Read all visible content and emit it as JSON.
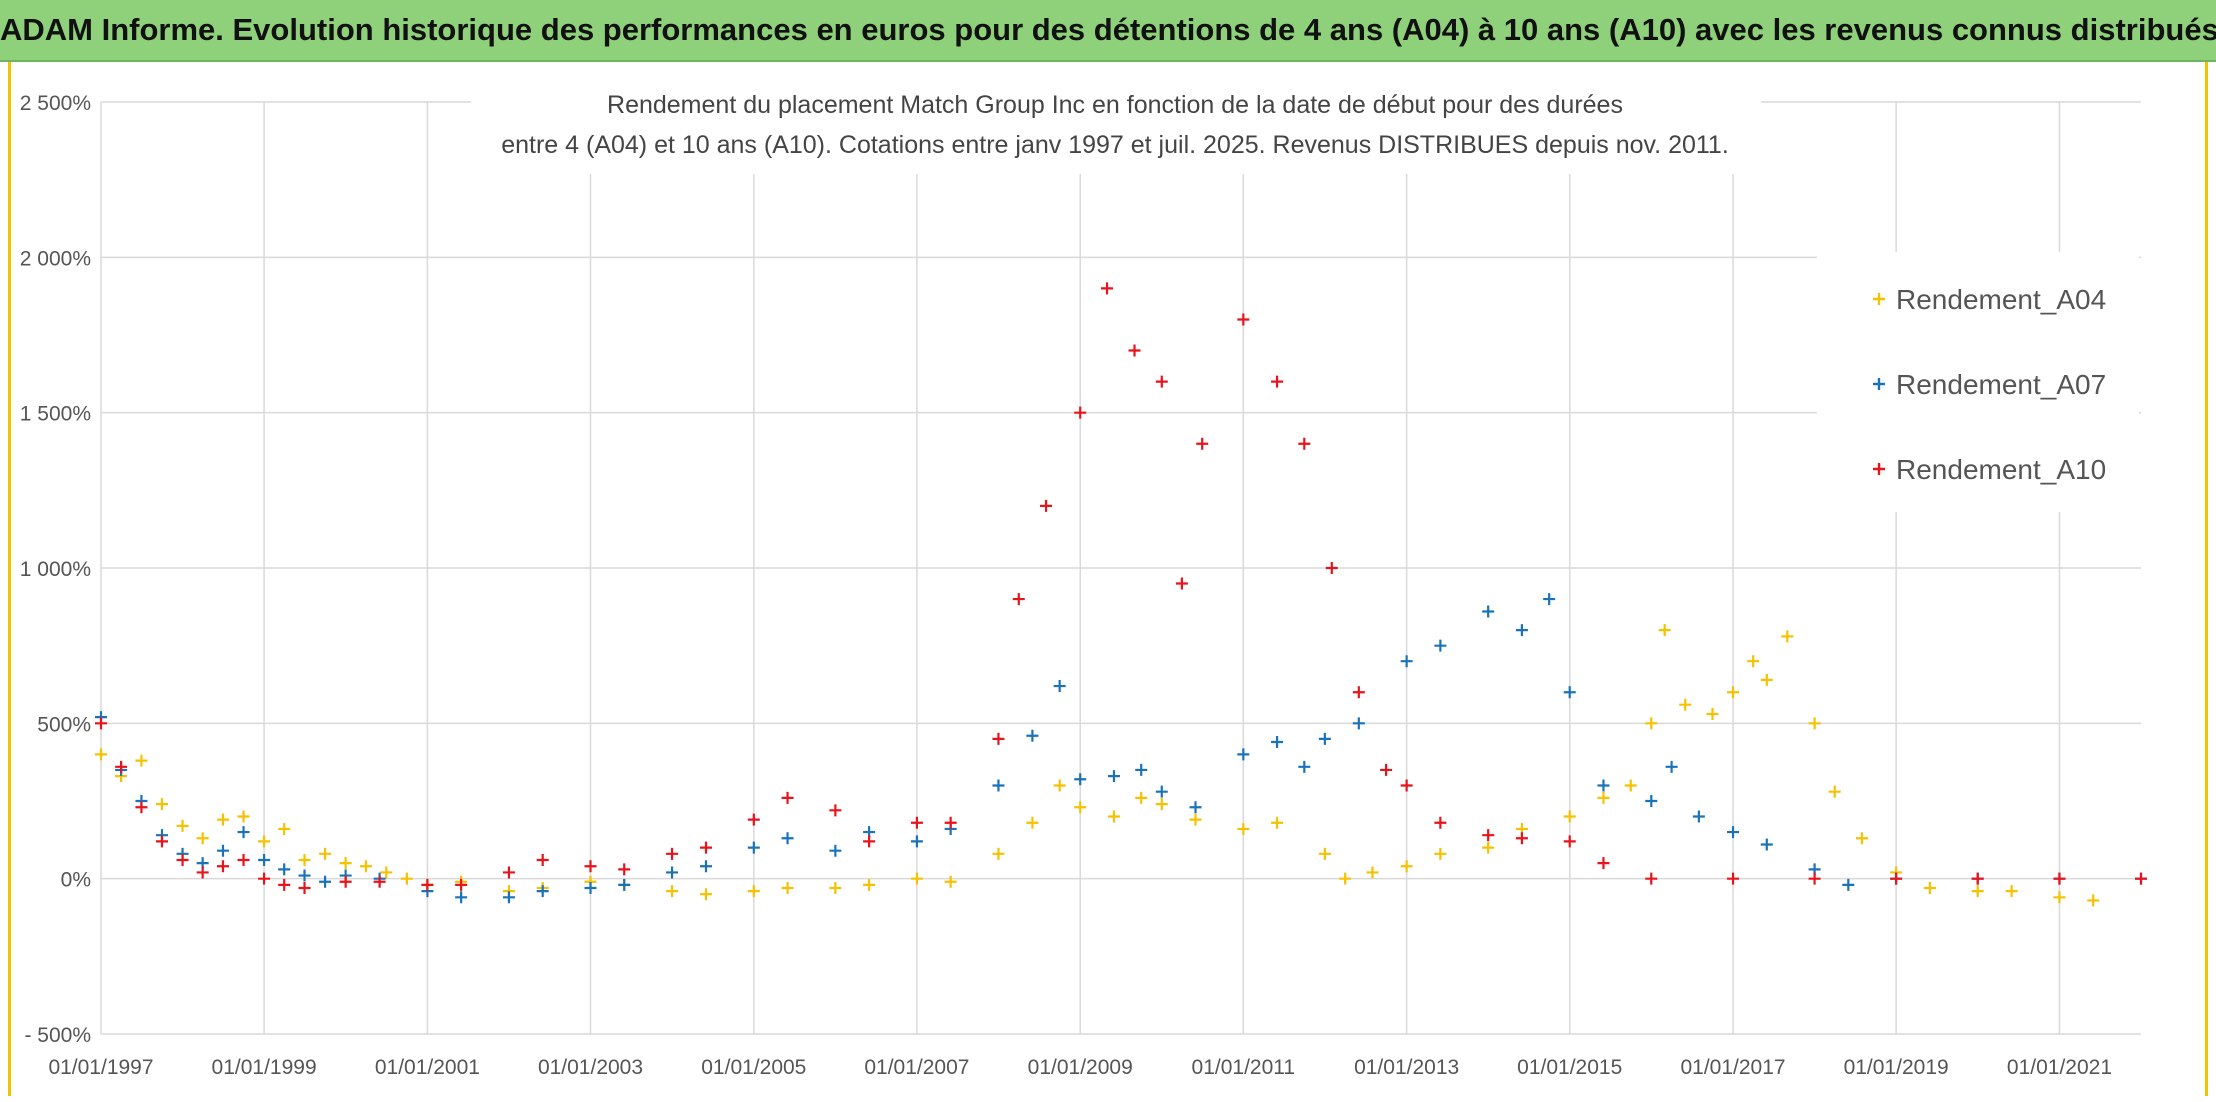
{
  "banner": {
    "title": "ADAM Informe. Evolution historique des performances en euros pour des détentions de 4 ans (A04) à 10 ans (A10) avec les revenus connus distribués"
  },
  "chart_data": {
    "type": "scatter",
    "title_line1": "Rendement du placement Match Group Inc en fonction de la date de début pour des durées",
    "title_line2": "entre 4 (A04) et 10 ans (A10). Cotations entre janv 1997 et juil. 2025. Revenus DISTRIBUES depuis nov. 2011.",
    "xlabel": "",
    "ylabel": "",
    "x_axis": {
      "type": "date",
      "min": "1997-01-01",
      "max": "2022-01-01",
      "ticks": [
        "01/01/1997",
        "01/01/1999",
        "01/01/2001",
        "01/01/2003",
        "01/01/2005",
        "01/01/2007",
        "01/01/2009",
        "01/01/2011",
        "01/01/2013",
        "01/01/2015",
        "01/01/2017",
        "01/01/2019",
        "01/01/2021"
      ]
    },
    "y_axis": {
      "unit": "%",
      "min": -500,
      "max": 2500,
      "step": 500,
      "tick_labels": [
        "- 500%",
        "0%",
        "500%",
        "1 000%",
        "1 500%",
        "2 000%",
        "2 500%"
      ]
    },
    "grid": true,
    "legend_position": "right",
    "marker": "+",
    "series": [
      {
        "name": "Rendement_A04",
        "color": "#f5c100",
        "points": [
          [
            "1997-01-01",
            400
          ],
          [
            "1997-04-01",
            330
          ],
          [
            "1997-07-01",
            380
          ],
          [
            "1997-10-01",
            240
          ],
          [
            "1998-01-01",
            170
          ],
          [
            "1998-04-01",
            130
          ],
          [
            "1998-07-01",
            190
          ],
          [
            "1998-10-01",
            200
          ],
          [
            "1999-01-01",
            120
          ],
          [
            "1999-04-01",
            160
          ],
          [
            "1999-07-01",
            60
          ],
          [
            "1999-10-01",
            80
          ],
          [
            "2000-01-01",
            50
          ],
          [
            "2000-04-01",
            40
          ],
          [
            "2000-07-01",
            20
          ],
          [
            "2000-10-01",
            0
          ],
          [
            "2001-01-01",
            -20
          ],
          [
            "2001-06-01",
            -10
          ],
          [
            "2002-01-01",
            -40
          ],
          [
            "2002-06-01",
            -30
          ],
          [
            "2003-01-01",
            -10
          ],
          [
            "2003-06-01",
            -20
          ],
          [
            "2004-01-01",
            -40
          ],
          [
            "2004-06-01",
            -50
          ],
          [
            "2005-01-01",
            -40
          ],
          [
            "2005-06-01",
            -30
          ],
          [
            "2006-01-01",
            -30
          ],
          [
            "2006-06-01",
            -20
          ],
          [
            "2007-01-01",
            0
          ],
          [
            "2007-06-01",
            -10
          ],
          [
            "2008-01-01",
            80
          ],
          [
            "2008-06-01",
            180
          ],
          [
            "2008-10-01",
            300
          ],
          [
            "2009-01-01",
            230
          ],
          [
            "2009-06-01",
            200
          ],
          [
            "2009-10-01",
            260
          ],
          [
            "2010-01-01",
            240
          ],
          [
            "2010-06-01",
            190
          ],
          [
            "2011-01-01",
            160
          ],
          [
            "2011-06-01",
            180
          ],
          [
            "2012-01-01",
            80
          ],
          [
            "2012-04-01",
            0
          ],
          [
            "2012-08-01",
            20
          ],
          [
            "2013-01-01",
            40
          ],
          [
            "2013-06-01",
            80
          ],
          [
            "2014-01-01",
            100
          ],
          [
            "2014-06-01",
            160
          ],
          [
            "2015-01-01",
            200
          ],
          [
            "2015-06-01",
            260
          ],
          [
            "2015-10-01",
            300
          ],
          [
            "2016-01-01",
            500
          ],
          [
            "2016-03-01",
            800
          ],
          [
            "2016-06-01",
            560
          ],
          [
            "2016-10-01",
            530
          ],
          [
            "2017-01-01",
            600
          ],
          [
            "2017-04-01",
            700
          ],
          [
            "2017-06-01",
            640
          ],
          [
            "2017-09-01",
            780
          ],
          [
            "2018-01-01",
            500
          ],
          [
            "2018-04-01",
            280
          ],
          [
            "2018-08-01",
            130
          ],
          [
            "2019-01-01",
            20
          ],
          [
            "2019-06-01",
            -30
          ],
          [
            "2020-01-01",
            -40
          ],
          [
            "2020-06-01",
            -40
          ],
          [
            "2021-01-01",
            -60
          ],
          [
            "2021-06-01",
            -70
          ]
        ]
      },
      {
        "name": "Rendement_A07",
        "color": "#1a73b8",
        "points": [
          [
            "1997-01-01",
            520
          ],
          [
            "1997-04-01",
            350
          ],
          [
            "1997-07-01",
            250
          ],
          [
            "1997-10-01",
            140
          ],
          [
            "1998-01-01",
            80
          ],
          [
            "1998-04-01",
            50
          ],
          [
            "1998-07-01",
            90
          ],
          [
            "1998-10-01",
            150
          ],
          [
            "1999-01-01",
            60
          ],
          [
            "1999-04-01",
            30
          ],
          [
            "1999-07-01",
            10
          ],
          [
            "1999-10-01",
            -10
          ],
          [
            "2000-01-01",
            10
          ],
          [
            "2000-06-01",
            0
          ],
          [
            "2001-01-01",
            -40
          ],
          [
            "2001-06-01",
            -60
          ],
          [
            "2002-01-01",
            -60
          ],
          [
            "2002-06-01",
            -40
          ],
          [
            "2003-01-01",
            -30
          ],
          [
            "2003-06-01",
            -20
          ],
          [
            "2004-01-01",
            20
          ],
          [
            "2004-06-01",
            40
          ],
          [
            "2005-01-01",
            100
          ],
          [
            "2005-06-01",
            130
          ],
          [
            "2006-01-01",
            90
          ],
          [
            "2006-06-01",
            150
          ],
          [
            "2007-01-01",
            120
          ],
          [
            "2007-06-01",
            160
          ],
          [
            "2008-01-01",
            300
          ],
          [
            "2008-06-01",
            460
          ],
          [
            "2008-10-01",
            620
          ],
          [
            "2009-01-01",
            320
          ],
          [
            "2009-06-01",
            330
          ],
          [
            "2009-10-01",
            350
          ],
          [
            "2010-01-01",
            280
          ],
          [
            "2010-06-01",
            230
          ],
          [
            "2011-01-01",
            400
          ],
          [
            "2011-06-01",
            440
          ],
          [
            "2011-10-01",
            360
          ],
          [
            "2012-01-01",
            450
          ],
          [
            "2012-06-01",
            500
          ],
          [
            "2013-01-01",
            700
          ],
          [
            "2013-06-01",
            750
          ],
          [
            "2014-01-01",
            860
          ],
          [
            "2014-06-01",
            800
          ],
          [
            "2014-10-01",
            900
          ],
          [
            "2015-01-01",
            600
          ],
          [
            "2015-06-01",
            300
          ],
          [
            "2016-01-01",
            250
          ],
          [
            "2016-04-01",
            360
          ],
          [
            "2016-08-01",
            200
          ],
          [
            "2017-01-01",
            150
          ],
          [
            "2017-06-01",
            110
          ],
          [
            "2018-01-01",
            30
          ],
          [
            "2018-06-01",
            -20
          ],
          [
            "2019-01-01",
            0
          ],
          [
            "2020-01-01",
            0
          ],
          [
            "2021-01-01",
            0
          ],
          [
            "2022-01-01",
            0
          ]
        ]
      },
      {
        "name": "Rendement_A10",
        "color": "#e8131b",
        "points": [
          [
            "1997-01-01",
            500
          ],
          [
            "1997-04-01",
            360
          ],
          [
            "1997-07-01",
            230
          ],
          [
            "1997-10-01",
            120
          ],
          [
            "1998-01-01",
            60
          ],
          [
            "1998-04-01",
            20
          ],
          [
            "1998-07-01",
            40
          ],
          [
            "1998-10-01",
            60
          ],
          [
            "1999-01-01",
            0
          ],
          [
            "1999-04-01",
            -20
          ],
          [
            "1999-07-01",
            -30
          ],
          [
            "2000-01-01",
            -10
          ],
          [
            "2000-06-01",
            -10
          ],
          [
            "2001-01-01",
            -20
          ],
          [
            "2001-06-01",
            -20
          ],
          [
            "2002-01-01",
            20
          ],
          [
            "2002-06-01",
            60
          ],
          [
            "2003-01-01",
            40
          ],
          [
            "2003-06-01",
            30
          ],
          [
            "2004-01-01",
            80
          ],
          [
            "2004-06-01",
            100
          ],
          [
            "2005-01-01",
            190
          ],
          [
            "2005-06-01",
            260
          ],
          [
            "2006-01-01",
            220
          ],
          [
            "2006-06-01",
            120
          ],
          [
            "2007-01-01",
            180
          ],
          [
            "2007-06-01",
            180
          ],
          [
            "2008-01-01",
            450
          ],
          [
            "2008-04-01",
            900
          ],
          [
            "2008-08-01",
            1200
          ],
          [
            "2009-01-01",
            1500
          ],
          [
            "2009-05-01",
            1900
          ],
          [
            "2009-09-01",
            1700
          ],
          [
            "2010-01-01",
            1600
          ],
          [
            "2010-04-01",
            950
          ],
          [
            "2010-07-01",
            1400
          ],
          [
            "2011-01-01",
            1800
          ],
          [
            "2011-06-01",
            1600
          ],
          [
            "2011-10-01",
            1400
          ],
          [
            "2012-02-01",
            1000
          ],
          [
            "2012-06-01",
            600
          ],
          [
            "2012-10-01",
            350
          ],
          [
            "2013-01-01",
            300
          ],
          [
            "2013-06-01",
            180
          ],
          [
            "2014-01-01",
            140
          ],
          [
            "2014-06-01",
            130
          ],
          [
            "2015-01-01",
            120
          ],
          [
            "2015-06-01",
            50
          ],
          [
            "2016-01-01",
            0
          ],
          [
            "2017-01-01",
            0
          ],
          [
            "2018-01-01",
            0
          ],
          [
            "2019-01-01",
            0
          ],
          [
            "2020-01-01",
            0
          ],
          [
            "2021-01-01",
            0
          ],
          [
            "2022-01-01",
            0
          ]
        ]
      }
    ]
  }
}
